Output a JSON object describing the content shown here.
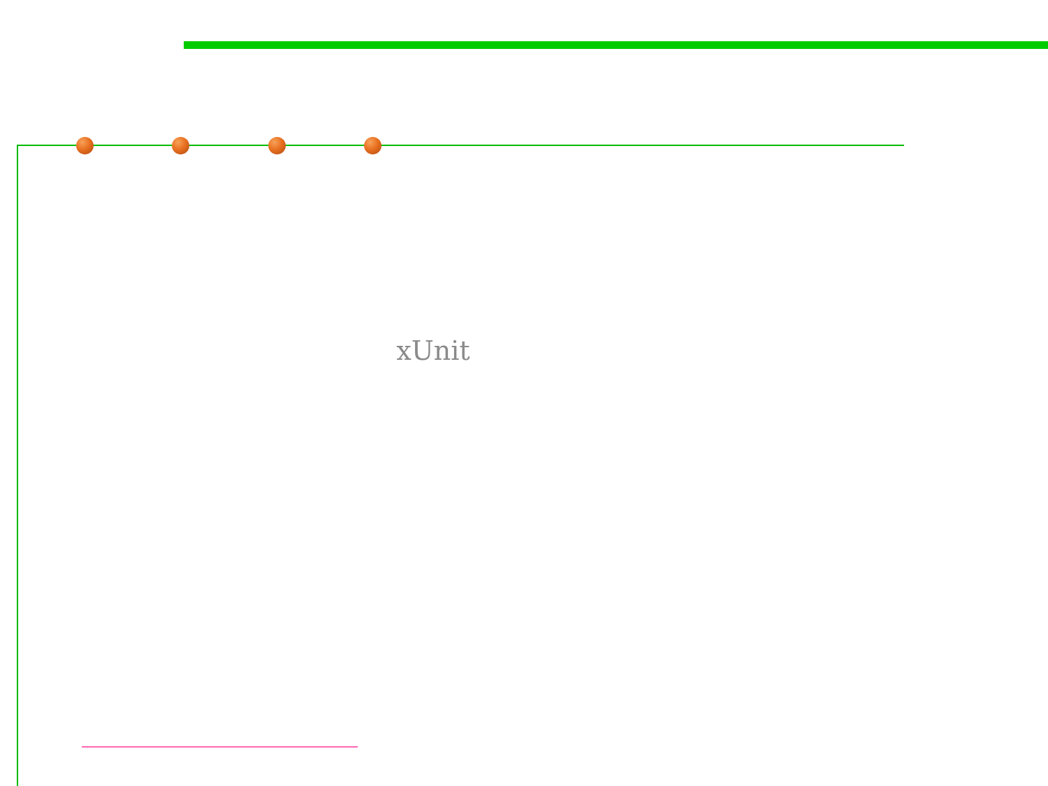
{
  "slide": {
    "title": "xUnit",
    "colors": {
      "background": "#ffffff",
      "top_bar": "#00cc00",
      "frame_line": "#00bb00",
      "bullet": "#e87020",
      "bullet_highlight": "#f7a25a",
      "bullet_shadow": "#b04a10",
      "title_text": "#8a8a8a",
      "footer_rule": "#ff66b3"
    },
    "icons": {
      "bullets": [
        "orange-sphere-icon",
        "orange-sphere-icon",
        "orange-sphere-icon",
        "orange-sphere-icon"
      ]
    }
  }
}
